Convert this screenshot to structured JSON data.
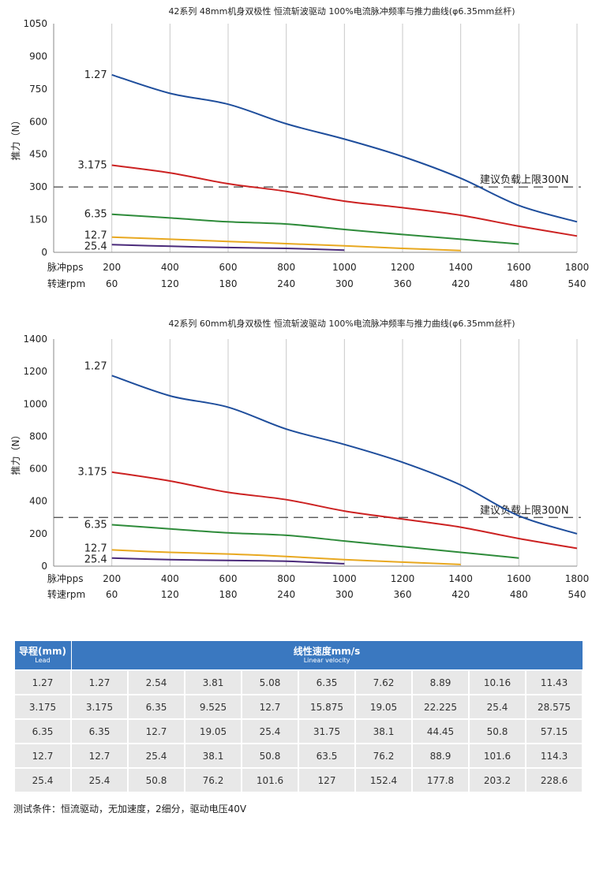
{
  "chart_data": [
    {
      "type": "line",
      "title": "42系列 48mm机身双极性 恒流斩波驱动 100%电流脉冲频率与推力曲线(φ6.35mm丝杆)",
      "ylabel": "推力（N）",
      "ylim": [
        0,
        1050
      ],
      "yticks": [
        0,
        150,
        300,
        450,
        600,
        750,
        900,
        1050
      ],
      "xlim": [
        0,
        1800
      ],
      "x_row_label": "脉冲pps",
      "x_tick_labels": [
        "200",
        "400",
        "600",
        "800",
        "1000",
        "1200",
        "1400",
        "1600",
        "1800"
      ],
      "x2_row_label": "转速rpm",
      "x2_tick_labels": [
        "60",
        "120",
        "180",
        "240",
        "300",
        "360",
        "420",
        "480",
        "540"
      ],
      "grid": "vertical",
      "reference_line": {
        "y": 300,
        "label": "建议负载上限300N",
        "style": "dashed"
      },
      "series": [
        {
          "name": "1.27",
          "color": "#1f4e9c",
          "x": [
            200,
            400,
            600,
            800,
            1000,
            1200,
            1400,
            1600,
            1800
          ],
          "y": [
            815,
            730,
            680,
            590,
            520,
            440,
            340,
            215,
            140
          ]
        },
        {
          "name": "3.175",
          "color": "#cc2222",
          "x": [
            200,
            400,
            600,
            800,
            1000,
            1200,
            1400,
            1600,
            1800
          ],
          "y": [
            400,
            365,
            315,
            280,
            235,
            205,
            170,
            120,
            75
          ]
        },
        {
          "name": "6.35",
          "color": "#2e8b3a",
          "x": [
            200,
            400,
            600,
            800,
            1000,
            1200,
            1400,
            1600
          ],
          "y": [
            175,
            158,
            140,
            130,
            105,
            82,
            60,
            38
          ]
        },
        {
          "name": "12.7",
          "color": "#e8a820",
          "x": [
            200,
            400,
            600,
            800,
            1000,
            1200,
            1400
          ],
          "y": [
            70,
            60,
            50,
            40,
            30,
            18,
            8
          ]
        },
        {
          "name": "25.4",
          "color": "#4a2a7a",
          "x": [
            200,
            400,
            600,
            800,
            1000
          ],
          "y": [
            35,
            28,
            22,
            18,
            10
          ]
        }
      ]
    },
    {
      "type": "line",
      "title": "42系列 60mm机身双极性 恒流斩波驱动 100%电流脉冲频率与推力曲线(φ6.35mm丝杆)",
      "ylabel": "推力（N）",
      "ylim": [
        0,
        1400
      ],
      "yticks": [
        0,
        200,
        400,
        600,
        800,
        1000,
        1200,
        1400
      ],
      "xlim": [
        0,
        1800
      ],
      "x_row_label": "脉冲pps",
      "x_tick_labels": [
        "200",
        "400",
        "600",
        "800",
        "1000",
        "1200",
        "1400",
        "1600",
        "1800"
      ],
      "x2_row_label": "转速rpm",
      "x2_tick_labels": [
        "60",
        "120",
        "180",
        "240",
        "300",
        "360",
        "420",
        "480",
        "540"
      ],
      "grid": "vertical",
      "reference_line": {
        "y": 300,
        "label": "建议负载上限300N",
        "style": "dashed"
      },
      "series": [
        {
          "name": "1.27",
          "color": "#1f4e9c",
          "x": [
            200,
            400,
            600,
            800,
            1000,
            1200,
            1400,
            1600,
            1800
          ],
          "y": [
            1175,
            1050,
            980,
            845,
            750,
            640,
            500,
            310,
            200
          ]
        },
        {
          "name": "3.175",
          "color": "#cc2222",
          "x": [
            200,
            400,
            600,
            800,
            1000,
            1200,
            1400,
            1600,
            1800
          ],
          "y": [
            580,
            525,
            455,
            410,
            340,
            290,
            240,
            170,
            110
          ]
        },
        {
          "name": "6.35",
          "color": "#2e8b3a",
          "x": [
            200,
            400,
            600,
            800,
            1000,
            1200,
            1400,
            1600
          ],
          "y": [
            255,
            230,
            205,
            190,
            155,
            120,
            85,
            50
          ]
        },
        {
          "name": "12.7",
          "color": "#e8a820",
          "x": [
            200,
            400,
            600,
            800,
            1000,
            1200,
            1400
          ],
          "y": [
            100,
            85,
            75,
            60,
            40,
            25,
            10
          ]
        },
        {
          "name": "25.4",
          "color": "#4a2a7a",
          "x": [
            200,
            400,
            600,
            800,
            1000
          ],
          "y": [
            50,
            40,
            35,
            30,
            15
          ]
        }
      ]
    }
  ],
  "table": {
    "lead_header": "导程(mm)",
    "lead_header_en": "Lead",
    "speed_header": "线性速度mm/s",
    "speed_header_en": "Linear velocity",
    "rows": [
      [
        "1.27",
        "1.27",
        "2.54",
        "3.81",
        "5.08",
        "6.35",
        "7.62",
        "8.89",
        "10.16",
        "11.43"
      ],
      [
        "3.175",
        "3.175",
        "6.35",
        "9.525",
        "12.7",
        "15.875",
        "19.05",
        "22.225",
        "25.4",
        "28.575"
      ],
      [
        "6.35",
        "6.35",
        "12.7",
        "19.05",
        "25.4",
        "31.75",
        "38.1",
        "44.45",
        "50.8",
        "57.15"
      ],
      [
        "12.7",
        "12.7",
        "25.4",
        "38.1",
        "50.8",
        "63.5",
        "76.2",
        "88.9",
        "101.6",
        "114.3"
      ],
      [
        "25.4",
        "25.4",
        "50.8",
        "76.2",
        "101.6",
        "127",
        "152.4",
        "177.8",
        "203.2",
        "228.6"
      ]
    ]
  },
  "test_conditions": "测试条件：恒流驱动，无加速度，2细分，驱动电压40V"
}
